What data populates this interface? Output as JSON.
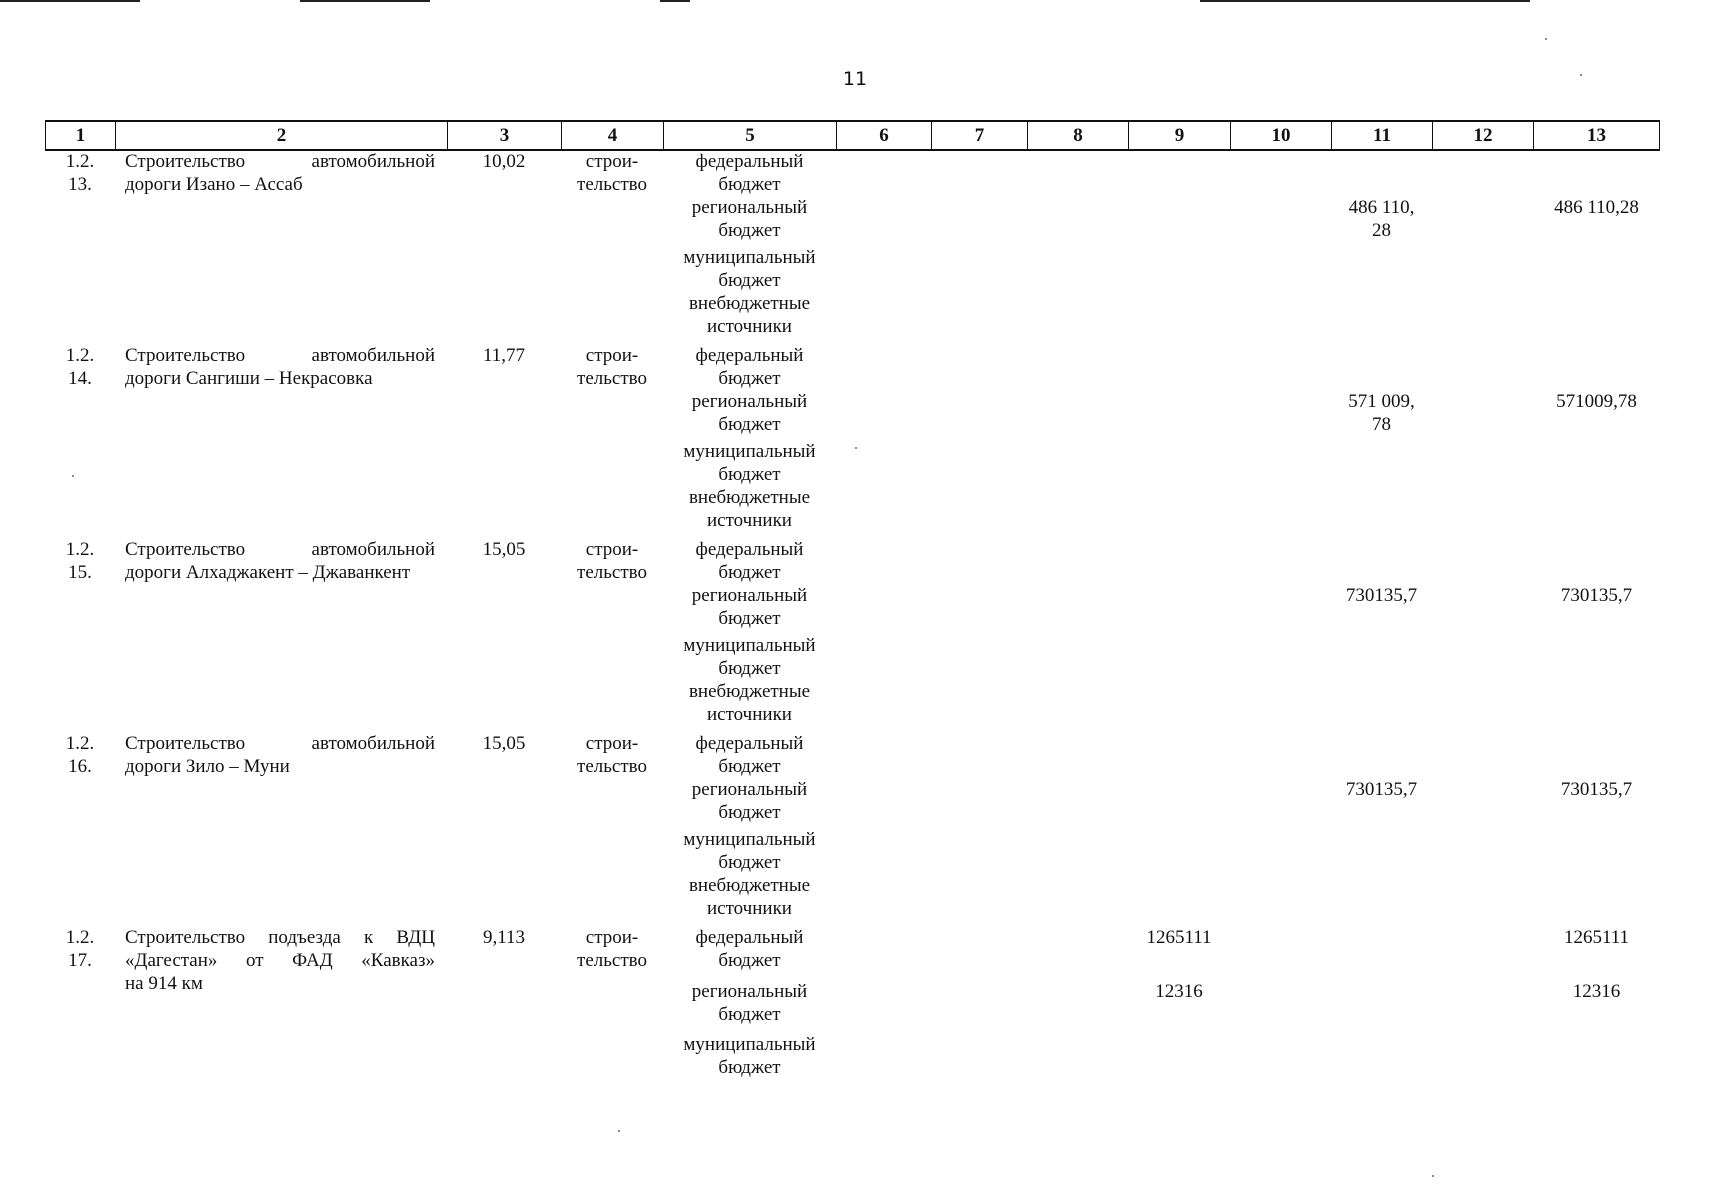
{
  "page_number": "11",
  "columns": [
    "1",
    "2",
    "3",
    "4",
    "5",
    "6",
    "7",
    "8",
    "9",
    "10",
    "11",
    "12",
    "13"
  ],
  "rows": [
    {
      "num_a": "1.2.",
      "num_b": "13.",
      "name_a": "Строительство автомобильной",
      "name_b": "дороги Изано – Ассаб",
      "length": "10,02",
      "type_a": "строи-",
      "type_b": "тельство",
      "sources": [
        {
          "a": "федеральный",
          "b": "бюджет"
        },
        {
          "a": "региональный",
          "b": "бюджет",
          "c11_a": "486 110,",
          "c11_b": "28",
          "c13": "486 110,28"
        },
        {
          "a": "муниципальный",
          "b": "бюджет"
        },
        {
          "a": "внебюджетные",
          "b": "источники"
        }
      ]
    },
    {
      "num_a": "1.2.",
      "num_b": "14.",
      "name_a": "Строительство автомобильной",
      "name_b": "дороги Сангиши – Некрасовка",
      "length": "11,77",
      "type_a": "строи-",
      "type_b": "тельство",
      "sources": [
        {
          "a": "федеральный",
          "b": "бюджет"
        },
        {
          "a": "региональный",
          "b": "бюджет",
          "c11_a": "571 009,",
          "c11_b": "78",
          "c13": "571009,78"
        },
        {
          "a": "муниципальный",
          "b": "бюджет"
        },
        {
          "a": "внебюджетные",
          "b": "источники"
        }
      ]
    },
    {
      "num_a": "1.2.",
      "num_b": "15.",
      "name_a": "Строительство автомобильной",
      "name_b": "дороги Алхаджакент – Джаванкент",
      "length": "15,05",
      "type_a": "строи-",
      "type_b": "тельство",
      "sources": [
        {
          "a": "федеральный",
          "b": "бюджет"
        },
        {
          "a": "региональный",
          "b": "бюджет",
          "c11_a": "730135,7",
          "c13": "730135,7"
        },
        {
          "a": "муниципальный",
          "b": "бюджет"
        },
        {
          "a": "внебюджетные",
          "b": "источники"
        }
      ]
    },
    {
      "num_a": "1.2.",
      "num_b": "16.",
      "name_a": "Строительство автомобильной",
      "name_b": "дороги Зило – Муни",
      "length": "15,05",
      "type_a": "строи-",
      "type_b": "тельство",
      "sources": [
        {
          "a": "федеральный",
          "b": "бюджет"
        },
        {
          "a": "региональный",
          "b": "бюджет",
          "c11_a": "730135,7",
          "c13": "730135,7"
        },
        {
          "a": "муниципальный",
          "b": "бюджет"
        },
        {
          "a": "внебюджетные",
          "b": "источники"
        }
      ]
    },
    {
      "num_a": "1.2.",
      "num_b": "17.",
      "name_a": "Строительство подъезда к ВДЦ",
      "name_b": "«Дагестан» от ФАД «Кавказ»",
      "name_c": "на 914 км",
      "length": "9,113",
      "type_a": "строи-",
      "type_b": "тельство",
      "sources": [
        {
          "a": "федеральный",
          "b": "бюджет",
          "c9": "1265111",
          "c13": "1265111"
        },
        {
          "a": "региональный",
          "b": "бюджет",
          "c9": "12316",
          "c13": "12316"
        },
        {
          "a": "муниципальный",
          "b": "бюджет"
        }
      ]
    }
  ]
}
